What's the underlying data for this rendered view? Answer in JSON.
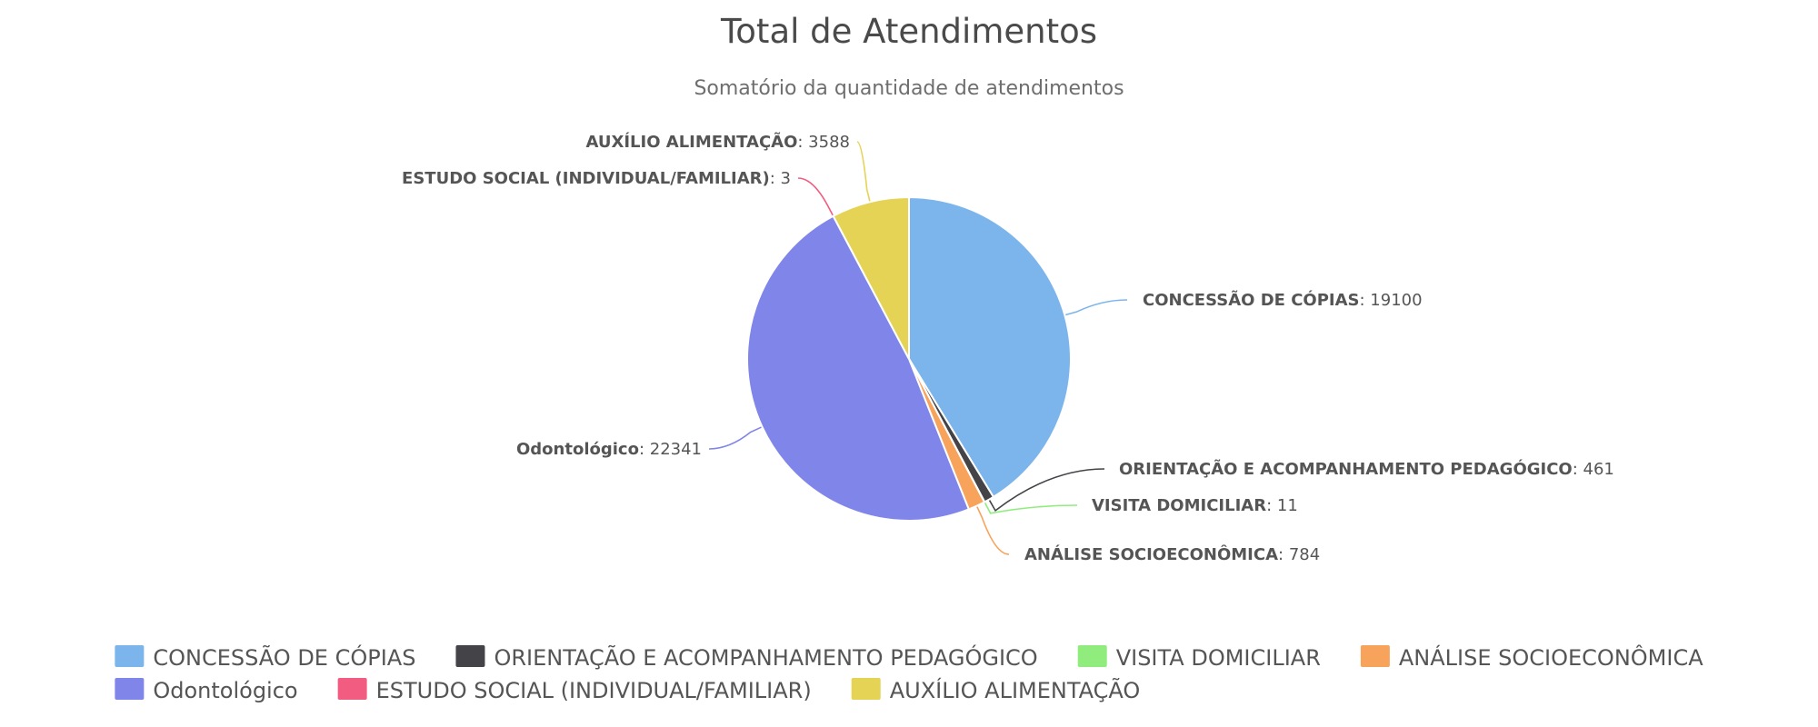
{
  "chart_data": {
    "type": "pie",
    "title": "Total de Atendimentos",
    "subtitle": "Somatório da quantidade de atendimentos",
    "legend_position": "bottom",
    "series": [
      {
        "name": "CONCESSÃO DE CÓPIAS",
        "value": 19100,
        "color": "#7cb5ec"
      },
      {
        "name": "ORIENTAÇÃO E ACOMPANHAMENTO PEDAGÓGICO",
        "value": 461,
        "color": "#434348"
      },
      {
        "name": "VISITA DOMICILIAR",
        "value": 11,
        "color": "#90ed7d"
      },
      {
        "name": "ANÁLISE SOCIOECONÔMICA",
        "value": 784,
        "color": "#f7a35c"
      },
      {
        "name": "Odontológico",
        "value": 22341,
        "color": "#8085e9"
      },
      {
        "name": "ESTUDO SOCIAL (INDIVIDUAL/FAMILIAR)",
        "value": 3,
        "color": "#f15c80"
      },
      {
        "name": "AUXÍLIO ALIMENTAÇÃO",
        "value": 3588,
        "color": "#e4d354"
      }
    ]
  }
}
